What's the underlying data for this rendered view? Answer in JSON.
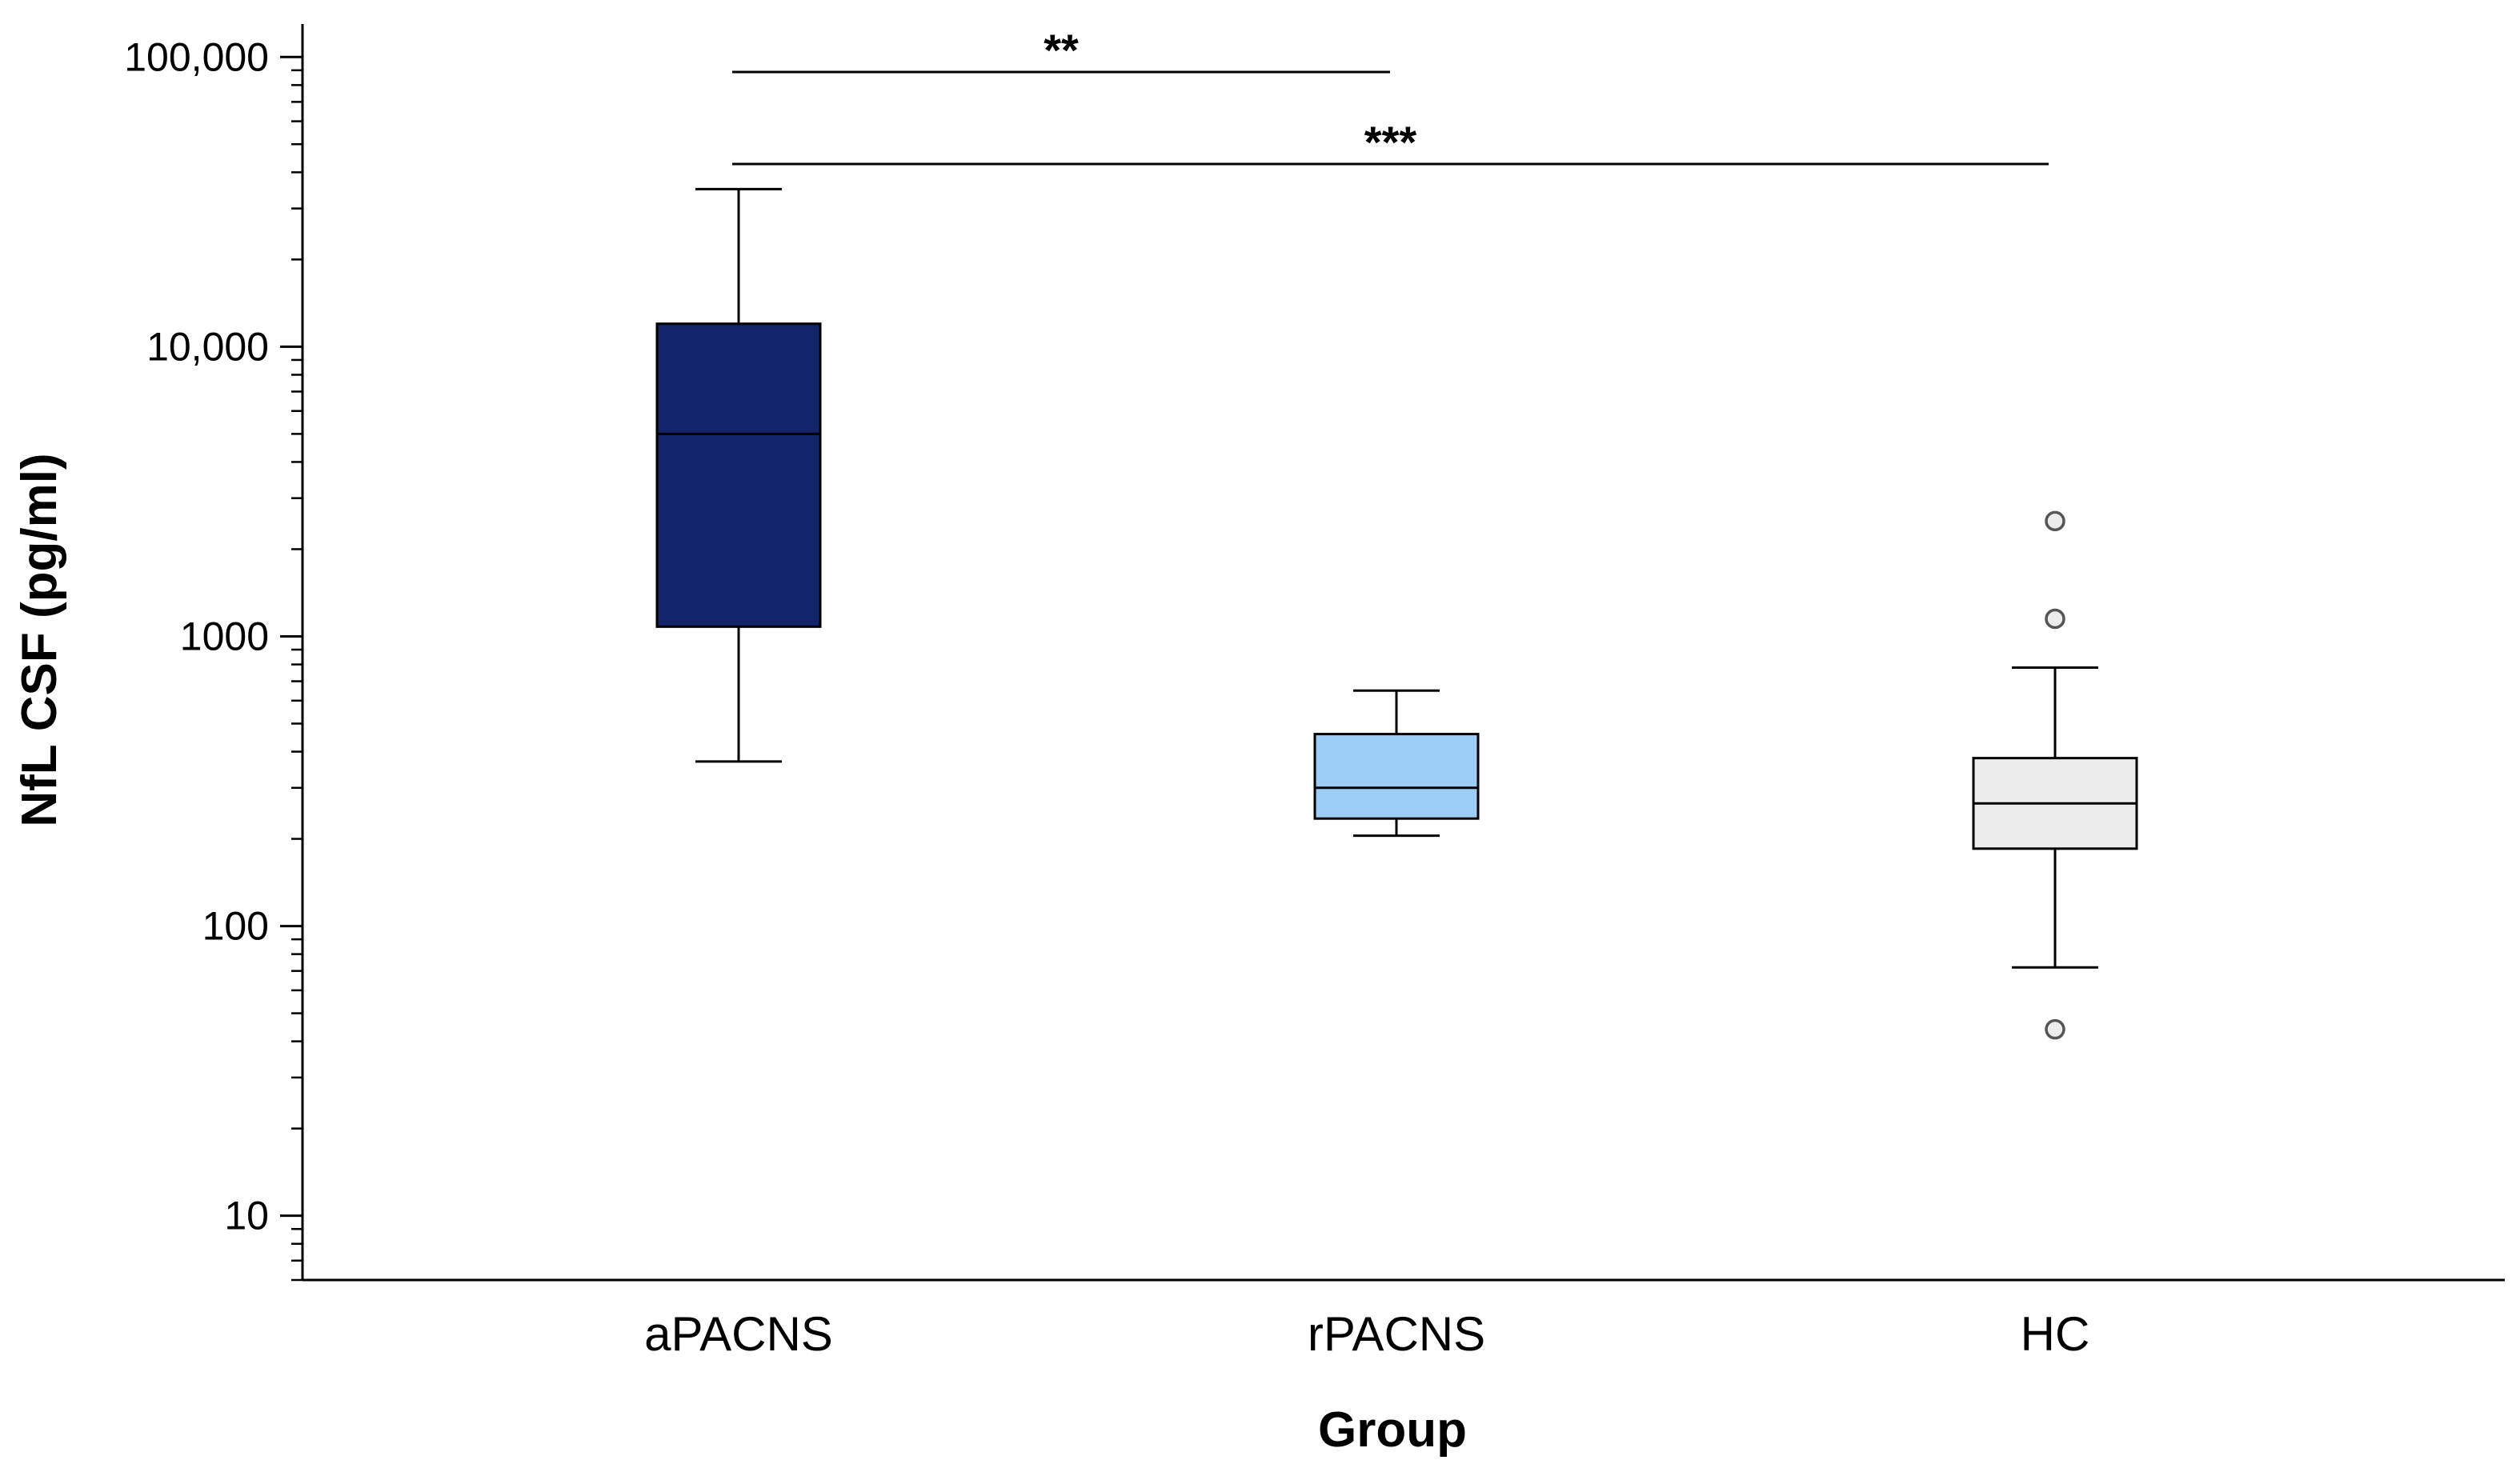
{
  "chart_data": {
    "type": "box",
    "title": "",
    "xlabel": "Group",
    "ylabel": "NfL CSF (pg/ml)",
    "yscale": "log",
    "ylim": [
      6,
      130000
    ],
    "yticks": [
      {
        "value": 10,
        "label": "10"
      },
      {
        "value": 100,
        "label": "100"
      },
      {
        "value": 1000,
        "label": "1000"
      },
      {
        "value": 10000,
        "label": "10,000"
      },
      {
        "value": 100000,
        "label": "100,000"
      }
    ],
    "categories": [
      "aPACNS",
      "rPACNS",
      "HC"
    ],
    "boxes": [
      {
        "category": "aPACNS",
        "whisker_low": 370,
        "q1": 1080,
        "median": 5000,
        "q3": 12000,
        "whisker_high": 35000,
        "outliers": [],
        "fill": "#13246b"
      },
      {
        "category": "rPACNS",
        "whisker_low": 205,
        "q1": 235,
        "median": 300,
        "q3": 460,
        "whisker_high": 650,
        "outliers": [],
        "fill": "#9ccdf7"
      },
      {
        "category": "HC",
        "whisker_low": 72,
        "q1": 185,
        "median": 265,
        "q3": 380,
        "whisker_high": 780,
        "outliers": [
          2500,
          1150,
          44
        ],
        "fill": "#ececec"
      }
    ],
    "significance": [
      {
        "from": "aPACNS",
        "to": "rPACNS",
        "label": "**"
      },
      {
        "from": "aPACNS",
        "to": "HC",
        "label": "***"
      }
    ],
    "grid": false,
    "legend": "none"
  }
}
